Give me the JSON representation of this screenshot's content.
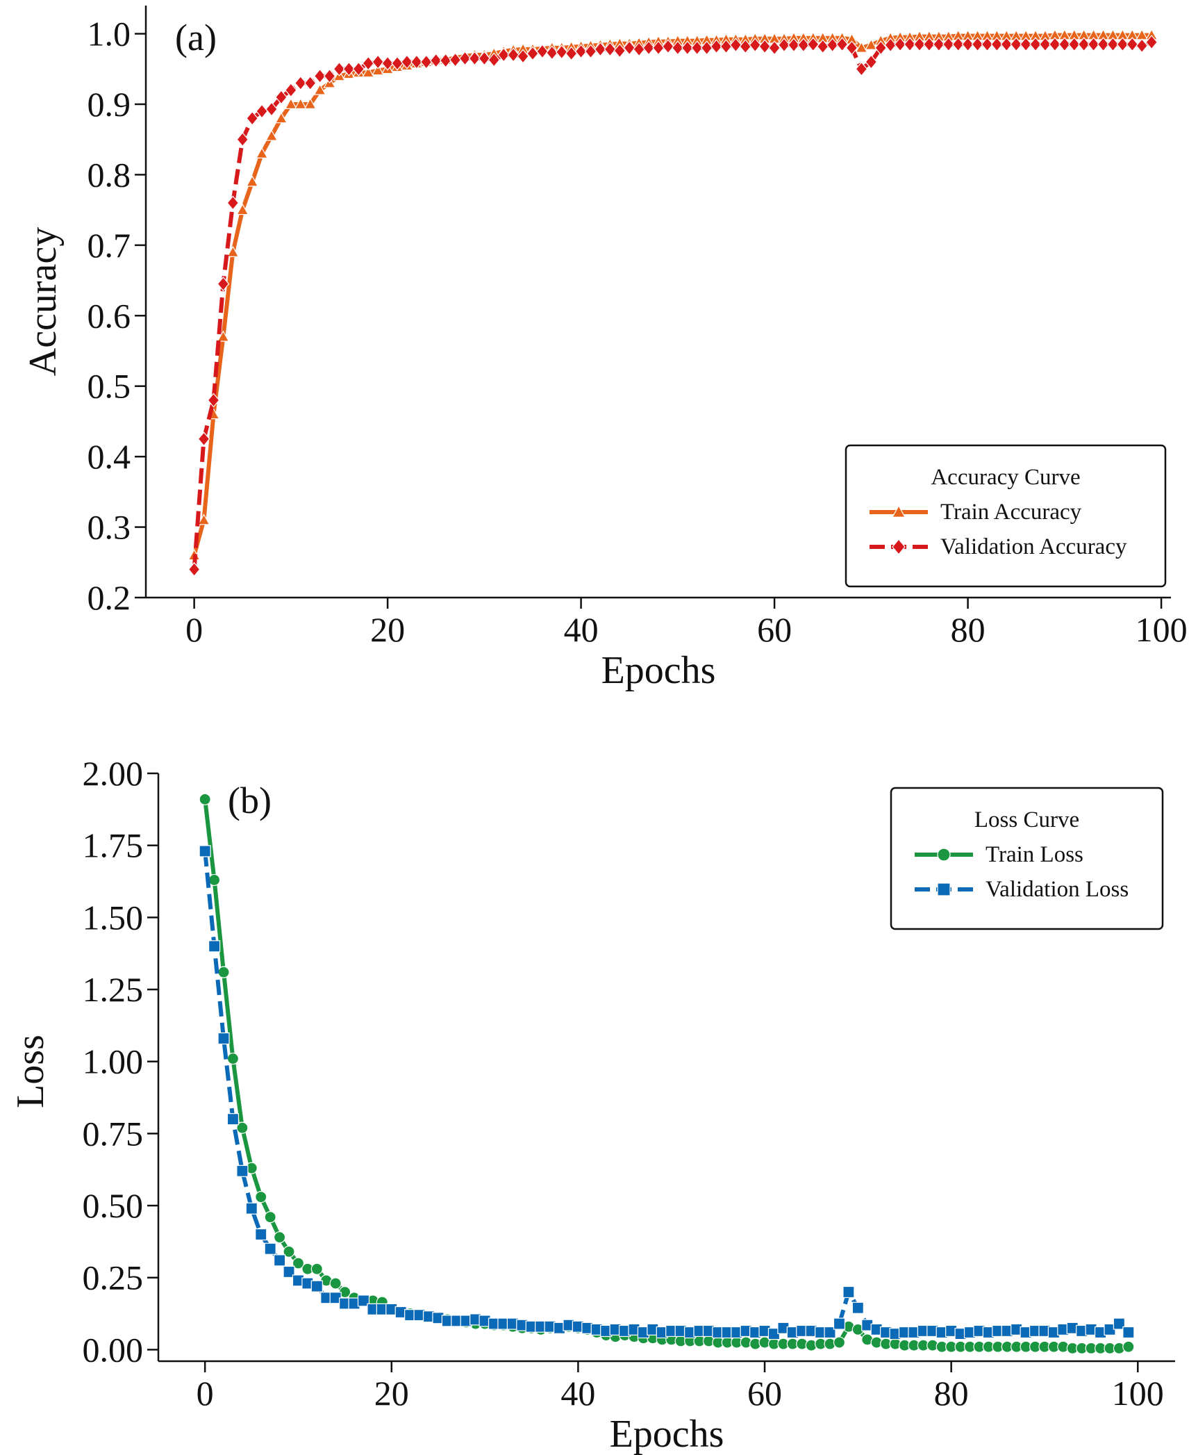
{
  "chart_data": [
    {
      "type": "line",
      "panel_label": "(a)",
      "xlabel": "Epochs",
      "ylabel": "Accuracy",
      "xlim": [
        -5,
        101
      ],
      "ylim": [
        0.2,
        1.04
      ],
      "xticks": [
        0,
        20,
        40,
        60,
        80,
        100
      ],
      "xtick_labels": [
        "0",
        "20",
        "40",
        "60",
        "80",
        "100"
      ],
      "yticks": [
        0.2,
        0.3,
        0.4,
        0.5,
        0.6,
        0.7,
        0.8,
        0.9,
        1.0
      ],
      "ytick_labels": [
        "0.2",
        "0.3",
        "0.4",
        "0.5",
        "0.6",
        "0.7",
        "0.8",
        "0.9",
        "1.0"
      ],
      "grid": false,
      "legend": {
        "title": "Accuracy Curve",
        "position": "lower right"
      },
      "x": [
        0,
        1,
        2,
        3,
        4,
        5,
        6,
        7,
        8,
        9,
        10,
        11,
        12,
        13,
        14,
        15,
        16,
        17,
        18,
        19,
        20,
        21,
        22,
        23,
        24,
        25,
        26,
        27,
        28,
        29,
        30,
        31,
        32,
        33,
        34,
        35,
        36,
        37,
        38,
        39,
        40,
        41,
        42,
        43,
        44,
        45,
        46,
        47,
        48,
        49,
        50,
        51,
        52,
        53,
        54,
        55,
        56,
        57,
        58,
        59,
        60,
        61,
        62,
        63,
        64,
        65,
        66,
        67,
        68,
        69,
        70,
        71,
        72,
        73,
        74,
        75,
        76,
        77,
        78,
        79,
        80,
        81,
        82,
        83,
        84,
        85,
        86,
        87,
        88,
        89,
        90,
        91,
        92,
        93,
        94,
        95,
        96,
        97,
        98,
        99
      ],
      "series": [
        {
          "name": "Train Accuracy",
          "color": "#e8641b",
          "marker": "triangle",
          "dash": "solid",
          "values": [
            0.26,
            0.31,
            0.46,
            0.57,
            0.69,
            0.75,
            0.79,
            0.83,
            0.855,
            0.88,
            0.9,
            0.9,
            0.9,
            0.92,
            0.93,
            0.94,
            0.943,
            0.945,
            0.945,
            0.948,
            0.95,
            0.953,
            0.955,
            0.958,
            0.96,
            0.962,
            0.963,
            0.966,
            0.968,
            0.97,
            0.97,
            0.972,
            0.975,
            0.977,
            0.978,
            0.978,
            0.979,
            0.98,
            0.98,
            0.981,
            0.982,
            0.983,
            0.984,
            0.985,
            0.986,
            0.986,
            0.987,
            0.988,
            0.989,
            0.989,
            0.99,
            0.99,
            0.99,
            0.991,
            0.991,
            0.992,
            0.992,
            0.992,
            0.993,
            0.993,
            0.993,
            0.993,
            0.994,
            0.994,
            0.994,
            0.994,
            0.994,
            0.994,
            0.992,
            0.98,
            0.984,
            0.99,
            0.994,
            0.995,
            0.995,
            0.996,
            0.996,
            0.996,
            0.996,
            0.997,
            0.997,
            0.997,
            0.997,
            0.997,
            0.997,
            0.997,
            0.997,
            0.997,
            0.997,
            0.998,
            0.998,
            0.998,
            0.998,
            0.998,
            0.998,
            0.998,
            0.998,
            0.998,
            0.998,
            0.998
          ]
        },
        {
          "name": "Validation Accuracy",
          "color": "#d7191c",
          "marker": "diamond",
          "dash": "dashed",
          "values": [
            0.24,
            0.425,
            0.48,
            0.645,
            0.76,
            0.85,
            0.88,
            0.89,
            0.893,
            0.91,
            0.92,
            0.93,
            0.93,
            0.94,
            0.94,
            0.95,
            0.95,
            0.95,
            0.958,
            0.96,
            0.958,
            0.958,
            0.96,
            0.96,
            0.96,
            0.962,
            0.962,
            0.963,
            0.965,
            0.965,
            0.965,
            0.963,
            0.97,
            0.97,
            0.968,
            0.972,
            0.975,
            0.973,
            0.974,
            0.972,
            0.975,
            0.975,
            0.978,
            0.978,
            0.976,
            0.98,
            0.978,
            0.98,
            0.98,
            0.982,
            0.98,
            0.98,
            0.98,
            0.98,
            0.982,
            0.982,
            0.984,
            0.982,
            0.984,
            0.982,
            0.98,
            0.984,
            0.984,
            0.984,
            0.985,
            0.982,
            0.984,
            0.985,
            0.98,
            0.95,
            0.96,
            0.98,
            0.984,
            0.985,
            0.985,
            0.985,
            0.985,
            0.985,
            0.985,
            0.985,
            0.985,
            0.985,
            0.985,
            0.985,
            0.985,
            0.985,
            0.985,
            0.985,
            0.985,
            0.985,
            0.985,
            0.985,
            0.985,
            0.985,
            0.985,
            0.985,
            0.985,
            0.985,
            0.983,
            0.988
          ]
        }
      ]
    },
    {
      "type": "line",
      "panel_label": "(b)",
      "xlabel": "Epochs",
      "ylabel": "Loss",
      "xlim": [
        -5,
        104
      ],
      "ylim": [
        -0.04,
        2.0
      ],
      "xticks": [
        0,
        20,
        40,
        60,
        80,
        100
      ],
      "xtick_labels": [
        "0",
        "20",
        "40",
        "60",
        "80",
        "100"
      ],
      "yticks": [
        0.0,
        0.25,
        0.5,
        0.75,
        1.0,
        1.25,
        1.5,
        1.75,
        2.0
      ],
      "ytick_labels": [
        "0.00",
        "0.25",
        "0.50",
        "0.75",
        "1.00",
        "1.25",
        "1.50",
        "1.75",
        "2.00"
      ],
      "grid": false,
      "legend": {
        "title": "Loss Curve",
        "position": "upper right"
      },
      "x": [
        0,
        1,
        2,
        3,
        4,
        5,
        6,
        7,
        8,
        9,
        10,
        11,
        12,
        13,
        14,
        15,
        16,
        17,
        18,
        19,
        20,
        21,
        22,
        23,
        24,
        25,
        26,
        27,
        28,
        29,
        30,
        31,
        32,
        33,
        34,
        35,
        36,
        37,
        38,
        39,
        40,
        41,
        42,
        43,
        44,
        45,
        46,
        47,
        48,
        49,
        50,
        51,
        52,
        53,
        54,
        55,
        56,
        57,
        58,
        59,
        60,
        61,
        62,
        63,
        64,
        65,
        66,
        67,
        68,
        69,
        70,
        71,
        72,
        73,
        74,
        75,
        76,
        77,
        78,
        79,
        80,
        81,
        82,
        83,
        84,
        85,
        86,
        87,
        88,
        89,
        90,
        91,
        92,
        93,
        94,
        95,
        96,
        97,
        98,
        99
      ],
      "series": [
        {
          "name": "Train Loss",
          "color": "#1a9641",
          "marker": "circle",
          "dash": "solid",
          "values": [
            1.91,
            1.63,
            1.31,
            1.01,
            0.77,
            0.63,
            0.53,
            0.46,
            0.39,
            0.34,
            0.3,
            0.28,
            0.28,
            0.24,
            0.23,
            0.2,
            0.18,
            0.17,
            0.17,
            0.165,
            0.14,
            0.13,
            0.125,
            0.12,
            0.115,
            0.11,
            0.105,
            0.1,
            0.095,
            0.09,
            0.09,
            0.085,
            0.085,
            0.08,
            0.075,
            0.075,
            0.07,
            0.075,
            0.075,
            0.08,
            0.075,
            0.07,
            0.06,
            0.05,
            0.045,
            0.05,
            0.045,
            0.04,
            0.04,
            0.035,
            0.035,
            0.03,
            0.03,
            0.03,
            0.03,
            0.025,
            0.025,
            0.025,
            0.025,
            0.02,
            0.025,
            0.02,
            0.02,
            0.02,
            0.02,
            0.015,
            0.02,
            0.02,
            0.025,
            0.08,
            0.07,
            0.035,
            0.025,
            0.02,
            0.02,
            0.015,
            0.015,
            0.015,
            0.015,
            0.01,
            0.01,
            0.01,
            0.01,
            0.01,
            0.01,
            0.01,
            0.01,
            0.01,
            0.01,
            0.01,
            0.01,
            0.01,
            0.01,
            0.005,
            0.005,
            0.005,
            0.005,
            0.005,
            0.005,
            0.01
          ]
        },
        {
          "name": "Validation Loss",
          "color": "#0a6ab8",
          "marker": "square",
          "dash": "dashed",
          "values": [
            1.73,
            1.4,
            1.08,
            0.8,
            0.62,
            0.49,
            0.4,
            0.35,
            0.31,
            0.27,
            0.24,
            0.23,
            0.22,
            0.18,
            0.18,
            0.16,
            0.16,
            0.17,
            0.14,
            0.14,
            0.14,
            0.13,
            0.12,
            0.12,
            0.115,
            0.11,
            0.1,
            0.1,
            0.1,
            0.105,
            0.1,
            0.09,
            0.09,
            0.09,
            0.085,
            0.08,
            0.08,
            0.08,
            0.075,
            0.085,
            0.08,
            0.075,
            0.07,
            0.065,
            0.07,
            0.065,
            0.07,
            0.06,
            0.07,
            0.06,
            0.065,
            0.065,
            0.06,
            0.065,
            0.065,
            0.06,
            0.06,
            0.06,
            0.065,
            0.06,
            0.065,
            0.055,
            0.075,
            0.06,
            0.065,
            0.065,
            0.06,
            0.06,
            0.09,
            0.2,
            0.145,
            0.085,
            0.07,
            0.06,
            0.055,
            0.06,
            0.06,
            0.065,
            0.065,
            0.06,
            0.065,
            0.055,
            0.06,
            0.065,
            0.06,
            0.065,
            0.065,
            0.07,
            0.06,
            0.065,
            0.065,
            0.06,
            0.07,
            0.075,
            0.065,
            0.07,
            0.06,
            0.07,
            0.09,
            0.06
          ]
        }
      ]
    }
  ]
}
